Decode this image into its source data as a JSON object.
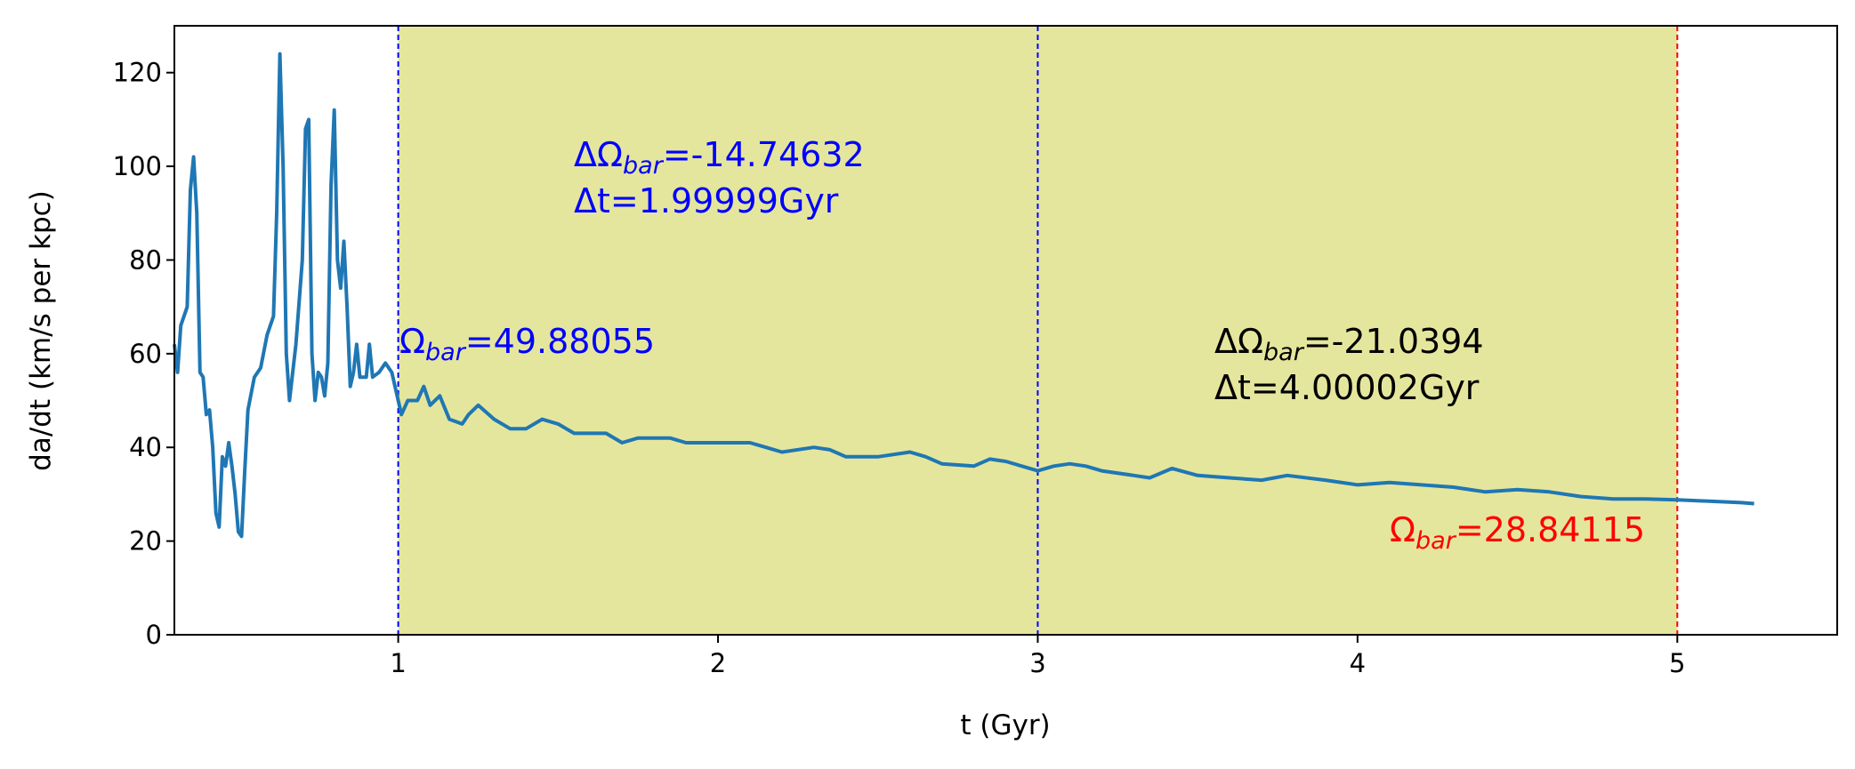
{
  "chart_data": {
    "type": "line",
    "xlabel": "t (Gyr)",
    "ylabel": "da/dt (km/s per kpc)",
    "color": "#1f77b4",
    "x": [
      0.3,
      0.31,
      0.32,
      0.33,
      0.34,
      0.35,
      0.36,
      0.37,
      0.38,
      0.39,
      0.4,
      0.41,
      0.42,
      0.43,
      0.44,
      0.45,
      0.46,
      0.47,
      0.48,
      0.49,
      0.5,
      0.51,
      0.52,
      0.53,
      0.55,
      0.57,
      0.59,
      0.61,
      0.62,
      0.63,
      0.64,
      0.65,
      0.66,
      0.67,
      0.68,
      0.7,
      0.71,
      0.72,
      0.73,
      0.74,
      0.75,
      0.76,
      0.77,
      0.78,
      0.79,
      0.8,
      0.81,
      0.82,
      0.83,
      0.84,
      0.85,
      0.86,
      0.87,
      0.88,
      0.9,
      0.91,
      0.92,
      0.94,
      0.96,
      0.98,
      1.0,
      1.01,
      1.03,
      1.06,
      1.08,
      1.1,
      1.13,
      1.16,
      1.2,
      1.22,
      1.25,
      1.3,
      1.35,
      1.4,
      1.45,
      1.5,
      1.55,
      1.6,
      1.65,
      1.7,
      1.75,
      1.8,
      1.85,
      1.9,
      2.0,
      2.1,
      2.15,
      2.2,
      2.3,
      2.35,
      2.4,
      2.5,
      2.6,
      2.65,
      2.7,
      2.8,
      2.85,
      2.9,
      2.95,
      3.0,
      3.05,
      3.1,
      3.15,
      3.2,
      3.3,
      3.35,
      3.42,
      3.5,
      3.6,
      3.7,
      3.78,
      3.9,
      4.0,
      4.1,
      4.2,
      4.3,
      4.4,
      4.5,
      4.6,
      4.7,
      4.8,
      4.9,
      5.0,
      5.1,
      5.2,
      5.24
    ],
    "values": [
      62,
      56,
      66,
      68,
      70,
      95,
      102,
      90,
      56,
      55,
      47,
      48,
      40,
      26,
      23,
      38,
      36,
      41,
      36,
      30,
      22,
      21,
      35,
      48,
      55,
      57,
      64,
      68,
      90,
      124,
      100,
      60,
      50,
      56,
      62,
      80,
      108,
      110,
      60,
      50,
      56,
      55,
      51,
      58,
      96,
      112,
      80,
      74,
      84,
      70,
      53,
      56,
      62,
      55,
      55,
      62,
      55,
      56,
      58,
      56,
      50,
      47,
      50,
      50,
      53,
      49,
      51,
      46,
      45,
      47,
      49,
      46,
      44,
      44,
      46,
      45,
      43,
      43,
      43,
      41,
      42,
      42,
      42,
      41,
      41,
      41,
      40,
      39,
      40,
      39.5,
      38,
      38,
      39,
      38,
      36.5,
      36,
      37.5,
      37,
      36,
      35,
      36,
      36.5,
      36,
      35,
      34,
      33.5,
      35.5,
      34,
      33.5,
      33,
      34,
      33,
      32,
      32.5,
      32,
      31.5,
      30.5,
      31,
      30.5,
      29.5,
      29,
      29,
      28.8,
      28.5,
      28.2,
      28
    ],
    "xlim": [
      0.3,
      5.5
    ],
    "ylim": [
      0,
      130
    ],
    "xticks": [
      1,
      2,
      3,
      4,
      5
    ],
    "yticks": [
      0,
      20,
      40,
      60,
      80,
      100,
      120
    ],
    "shaded_span": [
      1,
      5
    ],
    "shade_color": "#d4d65c",
    "vlines": [
      {
        "x": 1,
        "color": "#0000ff"
      },
      {
        "x": 3,
        "color": "#0000ff"
      },
      {
        "x": 5,
        "color": "#ff0000"
      }
    ],
    "annotations": [
      {
        "color": "#0000ff",
        "lines": [
          {
            "prefix": "ΔΩ",
            "sub": "bar",
            "suffix": "=-14.74632"
          },
          {
            "prefix": "Δt=1.99999Gyr"
          }
        ]
      },
      {
        "color": "#0000ff",
        "lines": [
          {
            "prefix": "Ω",
            "sub": "bar",
            "suffix": "=49.88055"
          }
        ]
      },
      {
        "color": "#000000",
        "lines": [
          {
            "prefix": "ΔΩ",
            "sub": "bar",
            "suffix": "=-21.0394"
          },
          {
            "prefix": "Δt=4.00002Gyr"
          }
        ]
      },
      {
        "color": "#ff0000",
        "lines": [
          {
            "prefix": "Ω",
            "sub": "bar",
            "suffix": "=28.84115"
          }
        ]
      }
    ]
  }
}
